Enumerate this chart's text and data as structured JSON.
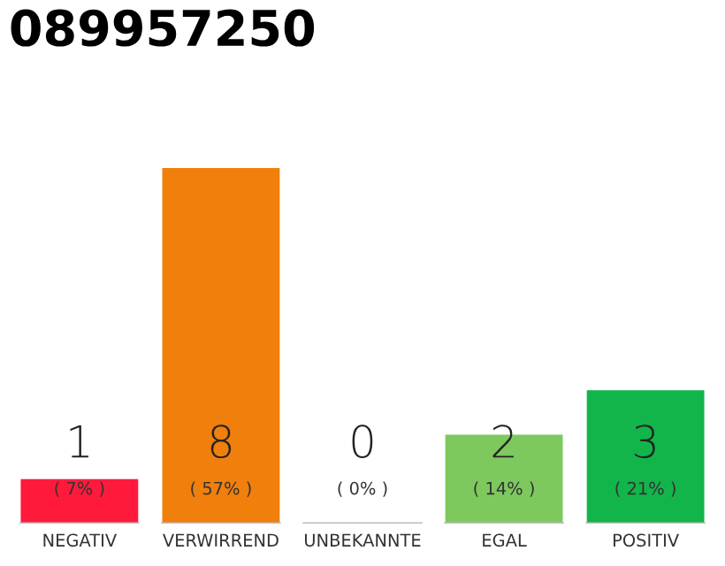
{
  "chart_data": {
    "type": "bar",
    "title": "089957250",
    "categories": [
      "NEGATIV",
      "VERWIRREND",
      "UNBEKANNTE",
      "EGAL",
      "POSITIV"
    ],
    "values": [
      1,
      8,
      0,
      2,
      3
    ],
    "colors": [
      "#ff1a3c",
      "#f07f0c",
      "#aaaaaa",
      "#7dc95e",
      "#12b54a"
    ],
    "ylim": [
      0,
      8
    ],
    "data_labels": true,
    "annotations": [
      "( 7% )",
      "( 57% )",
      "( 0% )",
      "( 14% )",
      "( 21% )"
    ],
    "grid": false,
    "legend": false
  }
}
